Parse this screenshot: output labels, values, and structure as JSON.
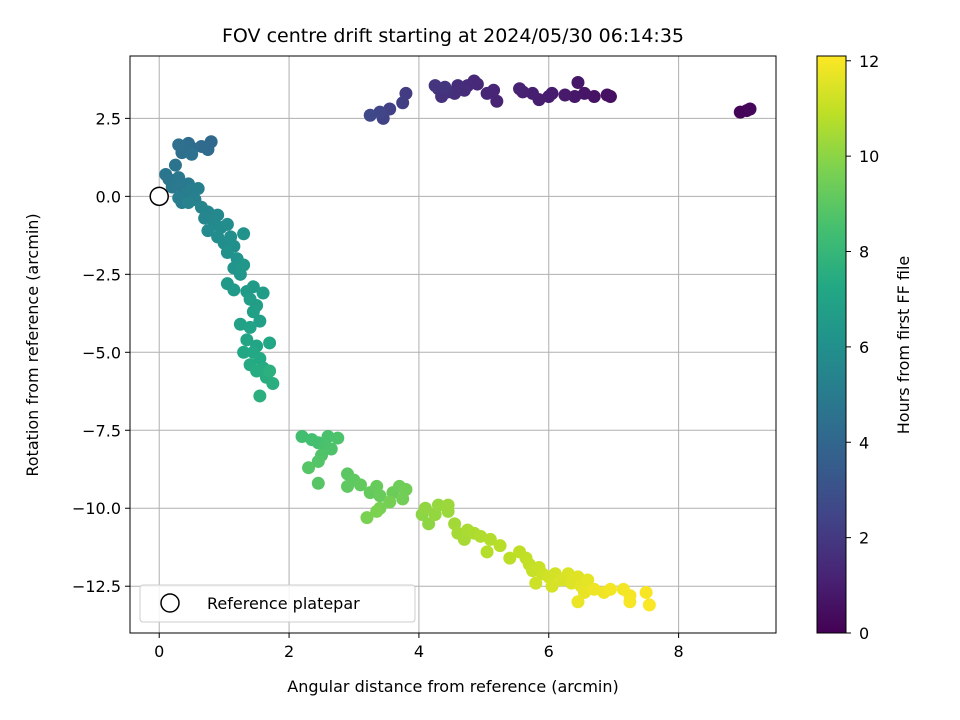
{
  "chart_data": {
    "type": "scatter",
    "title": "FOV centre drift starting at 2024/05/30 06:14:35",
    "xlabel": "Angular distance from reference (arcmin)",
    "ylabel": "Rotation from reference (arcmin)",
    "xlim": [
      -0.45,
      9.5
    ],
    "ylim": [
      -14.0,
      4.5
    ],
    "xticks": [
      0,
      2,
      4,
      6,
      8
    ],
    "xtick_labels": [
      "0",
      "2",
      "4",
      "6",
      "8"
    ],
    "yticks": [
      2.5,
      0.0,
      -2.5,
      -5.0,
      -7.5,
      -10.0,
      -12.5
    ],
    "ytick_labels": [
      "2.5",
      "0.0",
      "−2.5",
      "−5.0",
      "−7.5",
      "−10.0",
      "−12.5"
    ],
    "grid": true,
    "colorbar": {
      "label": "Hours from first FF file",
      "range": [
        0,
        12.1
      ],
      "ticks": [
        0,
        2,
        4,
        6,
        8,
        10,
        12
      ],
      "tick_labels": [
        "0",
        "2",
        "4",
        "6",
        "8",
        "10",
        "12"
      ],
      "colormap": "viridis"
    },
    "reference_point": {
      "x": 0,
      "y": 0
    },
    "legend": {
      "placement": "lower-left",
      "entries": [
        "Reference platepar"
      ]
    },
    "points": [
      {
        "x": 8.95,
        "y": 2.7,
        "c": 0.1
      },
      {
        "x": 9.05,
        "y": 2.75,
        "c": 0.15
      },
      {
        "x": 9.1,
        "y": 2.8,
        "c": 0.2
      },
      {
        "x": 6.95,
        "y": 3.2,
        "c": 0.5
      },
      {
        "x": 6.9,
        "y": 3.25,
        "c": 0.55
      },
      {
        "x": 6.7,
        "y": 3.2,
        "c": 0.6
      },
      {
        "x": 6.55,
        "y": 3.3,
        "c": 0.7
      },
      {
        "x": 6.45,
        "y": 3.65,
        "c": 0.75
      },
      {
        "x": 6.4,
        "y": 3.2,
        "c": 0.8
      },
      {
        "x": 6.25,
        "y": 3.25,
        "c": 0.85
      },
      {
        "x": 6.05,
        "y": 3.3,
        "c": 0.9
      },
      {
        "x": 6.0,
        "y": 3.2,
        "c": 0.95
      },
      {
        "x": 5.85,
        "y": 3.1,
        "c": 1.0
      },
      {
        "x": 5.75,
        "y": 3.3,
        "c": 1.05
      },
      {
        "x": 5.6,
        "y": 3.35,
        "c": 1.1
      },
      {
        "x": 5.55,
        "y": 3.45,
        "c": 1.15
      },
      {
        "x": 5.2,
        "y": 3.05,
        "c": 1.2
      },
      {
        "x": 5.15,
        "y": 3.4,
        "c": 1.25
      },
      {
        "x": 5.05,
        "y": 3.3,
        "c": 1.3
      },
      {
        "x": 4.9,
        "y": 3.6,
        "c": 1.35
      },
      {
        "x": 4.85,
        "y": 3.7,
        "c": 1.4
      },
      {
        "x": 4.75,
        "y": 3.55,
        "c": 1.45
      },
      {
        "x": 4.7,
        "y": 3.4,
        "c": 1.5
      },
      {
        "x": 4.6,
        "y": 3.55,
        "c": 1.55
      },
      {
        "x": 4.55,
        "y": 3.3,
        "c": 1.6
      },
      {
        "x": 4.45,
        "y": 3.35,
        "c": 1.65
      },
      {
        "x": 4.35,
        "y": 3.2,
        "c": 1.7
      },
      {
        "x": 4.3,
        "y": 3.45,
        "c": 1.75
      },
      {
        "x": 4.25,
        "y": 3.55,
        "c": 1.8
      },
      {
        "x": 4.4,
        "y": 3.5,
        "c": 1.85
      },
      {
        "x": 3.8,
        "y": 3.3,
        "c": 2.1
      },
      {
        "x": 3.75,
        "y": 3.0,
        "c": 2.2
      },
      {
        "x": 3.55,
        "y": 2.8,
        "c": 2.3
      },
      {
        "x": 3.45,
        "y": 2.5,
        "c": 2.4
      },
      {
        "x": 3.4,
        "y": 2.7,
        "c": 2.5
      },
      {
        "x": 3.25,
        "y": 2.6,
        "c": 2.6
      },
      {
        "x": 0.8,
        "y": 1.75,
        "c": 4.1
      },
      {
        "x": 0.75,
        "y": 1.5,
        "c": 4.15
      },
      {
        "x": 0.65,
        "y": 1.6,
        "c": 4.2
      },
      {
        "x": 0.5,
        "y": 1.55,
        "c": 4.25
      },
      {
        "x": 0.45,
        "y": 1.7,
        "c": 4.3
      },
      {
        "x": 0.4,
        "y": 1.6,
        "c": 4.35
      },
      {
        "x": 0.35,
        "y": 1.4,
        "c": 4.4
      },
      {
        "x": 0.3,
        "y": 1.65,
        "c": 4.45
      },
      {
        "x": 0.5,
        "y": 1.35,
        "c": 4.5
      },
      {
        "x": 0.25,
        "y": 1.0,
        "c": 4.6
      },
      {
        "x": 0.1,
        "y": 0.7,
        "c": 4.7
      },
      {
        "x": 0.15,
        "y": 0.55,
        "c": 4.75
      },
      {
        "x": 0.3,
        "y": 0.6,
        "c": 4.8
      },
      {
        "x": 0.2,
        "y": 0.3,
        "c": 4.85
      },
      {
        "x": 0.3,
        "y": 0.35,
        "c": 4.9
      },
      {
        "x": 0.45,
        "y": 0.4,
        "c": 4.95
      },
      {
        "x": 0.4,
        "y": 0.1,
        "c": 5.0
      },
      {
        "x": 0.35,
        "y": -0.2,
        "c": 5.05
      },
      {
        "x": 0.3,
        "y": -0.05,
        "c": 5.1
      },
      {
        "x": 0.5,
        "y": 0.2,
        "c": 5.15
      },
      {
        "x": 0.6,
        "y": 0.25,
        "c": 5.2
      },
      {
        "x": 0.55,
        "y": -0.1,
        "c": 5.25
      },
      {
        "x": 0.45,
        "y": -0.2,
        "c": 5.3
      },
      {
        "x": 0.65,
        "y": -0.35,
        "c": 5.4
      },
      {
        "x": 0.75,
        "y": -0.5,
        "c": 5.45
      },
      {
        "x": 0.7,
        "y": -0.7,
        "c": 5.5
      },
      {
        "x": 0.8,
        "y": -0.6,
        "c": 5.55
      },
      {
        "x": 0.9,
        "y": -0.6,
        "c": 5.6
      },
      {
        "x": 0.85,
        "y": -0.9,
        "c": 5.65
      },
      {
        "x": 0.75,
        "y": -1.1,
        "c": 5.7
      },
      {
        "x": 0.95,
        "y": -1.0,
        "c": 5.75
      },
      {
        "x": 1.05,
        "y": -0.9,
        "c": 5.8
      },
      {
        "x": 0.9,
        "y": -1.3,
        "c": 5.85
      },
      {
        "x": 1.0,
        "y": -1.5,
        "c": 5.9
      },
      {
        "x": 1.1,
        "y": -1.3,
        "c": 5.95
      },
      {
        "x": 1.15,
        "y": -1.6,
        "c": 6.0
      },
      {
        "x": 1.05,
        "y": -1.8,
        "c": 6.05
      },
      {
        "x": 1.2,
        "y": -2.0,
        "c": 6.1
      },
      {
        "x": 1.3,
        "y": -1.2,
        "c": 6.15
      },
      {
        "x": 1.15,
        "y": -2.3,
        "c": 6.25
      },
      {
        "x": 1.25,
        "y": -2.5,
        "c": 6.3
      },
      {
        "x": 1.3,
        "y": -2.2,
        "c": 6.35
      },
      {
        "x": 1.05,
        "y": -2.8,
        "c": 6.45
      },
      {
        "x": 1.15,
        "y": -3.0,
        "c": 6.5
      },
      {
        "x": 1.35,
        "y": -3.05,
        "c": 6.55
      },
      {
        "x": 1.45,
        "y": -2.9,
        "c": 6.6
      },
      {
        "x": 1.6,
        "y": -3.1,
        "c": 6.65
      },
      {
        "x": 1.4,
        "y": -3.3,
        "c": 6.7
      },
      {
        "x": 1.5,
        "y": -3.5,
        "c": 6.75
      },
      {
        "x": 1.45,
        "y": -3.7,
        "c": 6.8
      },
      {
        "x": 1.55,
        "y": -4.0,
        "c": 6.85
      },
      {
        "x": 1.25,
        "y": -4.1,
        "c": 6.9
      },
      {
        "x": 1.4,
        "y": -4.2,
        "c": 6.95
      },
      {
        "x": 1.35,
        "y": -4.6,
        "c": 7.05
      },
      {
        "x": 1.5,
        "y": -4.8,
        "c": 7.1
      },
      {
        "x": 1.7,
        "y": -4.7,
        "c": 7.15
      },
      {
        "x": 1.3,
        "y": -5.0,
        "c": 7.2
      },
      {
        "x": 1.45,
        "y": -5.0,
        "c": 7.25
      },
      {
        "x": 1.55,
        "y": -5.2,
        "c": 7.3
      },
      {
        "x": 1.4,
        "y": -5.4,
        "c": 7.35
      },
      {
        "x": 1.6,
        "y": -5.5,
        "c": 7.4
      },
      {
        "x": 1.5,
        "y": -5.6,
        "c": 7.45
      },
      {
        "x": 1.65,
        "y": -5.8,
        "c": 7.5
      },
      {
        "x": 1.75,
        "y": -6.0,
        "c": 7.55
      },
      {
        "x": 1.55,
        "y": -6.4,
        "c": 7.6
      },
      {
        "x": 1.7,
        "y": -5.6,
        "c": 7.65
      },
      {
        "x": 2.2,
        "y": -7.7,
        "c": 8.4
      },
      {
        "x": 2.35,
        "y": -7.8,
        "c": 8.45
      },
      {
        "x": 2.45,
        "y": -7.9,
        "c": 8.5
      },
      {
        "x": 2.55,
        "y": -8.0,
        "c": 8.55
      },
      {
        "x": 2.6,
        "y": -7.7,
        "c": 8.6
      },
      {
        "x": 2.75,
        "y": -7.75,
        "c": 8.65
      },
      {
        "x": 2.65,
        "y": -8.1,
        "c": 8.7
      },
      {
        "x": 2.5,
        "y": -8.3,
        "c": 8.75
      },
      {
        "x": 2.45,
        "y": -8.5,
        "c": 8.8
      },
      {
        "x": 2.3,
        "y": -8.7,
        "c": 8.85
      },
      {
        "x": 2.45,
        "y": -9.2,
        "c": 8.9
      },
      {
        "x": 2.9,
        "y": -8.9,
        "c": 9.0
      },
      {
        "x": 3.0,
        "y": -9.1,
        "c": 9.05
      },
      {
        "x": 2.9,
        "y": -9.3,
        "c": 9.1
      },
      {
        "x": 3.1,
        "y": -9.25,
        "c": 9.15
      },
      {
        "x": 3.25,
        "y": -9.5,
        "c": 9.2
      },
      {
        "x": 3.35,
        "y": -9.3,
        "c": 9.25
      },
      {
        "x": 3.4,
        "y": -9.6,
        "c": 9.3
      },
      {
        "x": 3.6,
        "y": -9.5,
        "c": 9.35
      },
      {
        "x": 3.7,
        "y": -9.3,
        "c": 9.4
      },
      {
        "x": 3.8,
        "y": -9.4,
        "c": 9.45
      },
      {
        "x": 3.75,
        "y": -9.7,
        "c": 9.5
      },
      {
        "x": 3.55,
        "y": -9.8,
        "c": 9.55
      },
      {
        "x": 3.4,
        "y": -10.0,
        "c": 9.6
      },
      {
        "x": 3.2,
        "y": -10.3,
        "c": 9.65
      },
      {
        "x": 3.35,
        "y": -10.1,
        "c": 9.7
      },
      {
        "x": 4.05,
        "y": -10.2,
        "c": 10.0
      },
      {
        "x": 4.15,
        "y": -10.5,
        "c": 10.05
      },
      {
        "x": 4.1,
        "y": -10.0,
        "c": 10.1
      },
      {
        "x": 4.25,
        "y": -10.2,
        "c": 10.15
      },
      {
        "x": 4.3,
        "y": -9.9,
        "c": 10.2
      },
      {
        "x": 4.45,
        "y": -10.1,
        "c": 10.25
      },
      {
        "x": 4.45,
        "y": -9.9,
        "c": 10.3
      },
      {
        "x": 4.55,
        "y": -10.5,
        "c": 10.4
      },
      {
        "x": 4.6,
        "y": -10.8,
        "c": 10.45
      },
      {
        "x": 4.7,
        "y": -11.0,
        "c": 10.5
      },
      {
        "x": 4.75,
        "y": -10.7,
        "c": 10.55
      },
      {
        "x": 4.85,
        "y": -10.8,
        "c": 10.6
      },
      {
        "x": 4.95,
        "y": -10.9,
        "c": 10.65
      },
      {
        "x": 5.1,
        "y": -11.0,
        "c": 10.7
      },
      {
        "x": 5.05,
        "y": -11.4,
        "c": 10.75
      },
      {
        "x": 5.25,
        "y": -11.2,
        "c": 10.8
      },
      {
        "x": 5.4,
        "y": -11.6,
        "c": 10.85
      },
      {
        "x": 5.55,
        "y": -11.4,
        "c": 10.9
      },
      {
        "x": 5.65,
        "y": -11.6,
        "c": 10.95
      },
      {
        "x": 5.7,
        "y": -11.8,
        "c": 11.0
      },
      {
        "x": 5.75,
        "y": -12.0,
        "c": 11.05
      },
      {
        "x": 5.85,
        "y": -11.9,
        "c": 11.1
      },
      {
        "x": 5.9,
        "y": -12.1,
        "c": 11.15
      },
      {
        "x": 5.8,
        "y": -12.4,
        "c": 11.2
      },
      {
        "x": 6.0,
        "y": -12.2,
        "c": 11.25
      },
      {
        "x": 6.1,
        "y": -12.1,
        "c": 11.3
      },
      {
        "x": 6.05,
        "y": -12.5,
        "c": 11.35
      },
      {
        "x": 6.2,
        "y": -12.3,
        "c": 11.4
      },
      {
        "x": 6.3,
        "y": -12.1,
        "c": 11.45
      },
      {
        "x": 6.35,
        "y": -12.4,
        "c": 11.5
      },
      {
        "x": 6.45,
        "y": -12.2,
        "c": 11.55
      },
      {
        "x": 6.5,
        "y": -12.5,
        "c": 11.6
      },
      {
        "x": 6.6,
        "y": -12.3,
        "c": 11.65
      },
      {
        "x": 6.55,
        "y": -12.7,
        "c": 11.7
      },
      {
        "x": 6.45,
        "y": -13.0,
        "c": 11.75
      },
      {
        "x": 6.7,
        "y": -12.6,
        "c": 11.8
      },
      {
        "x": 6.85,
        "y": -12.7,
        "c": 11.85
      },
      {
        "x": 6.95,
        "y": -12.6,
        "c": 11.9
      },
      {
        "x": 7.15,
        "y": -12.6,
        "c": 11.92
      },
      {
        "x": 7.25,
        "y": -12.8,
        "c": 11.95
      },
      {
        "x": 7.25,
        "y": -13.0,
        "c": 11.97
      },
      {
        "x": 7.5,
        "y": -12.7,
        "c": 12.0
      },
      {
        "x": 7.55,
        "y": -13.1,
        "c": 12.05
      }
    ]
  }
}
